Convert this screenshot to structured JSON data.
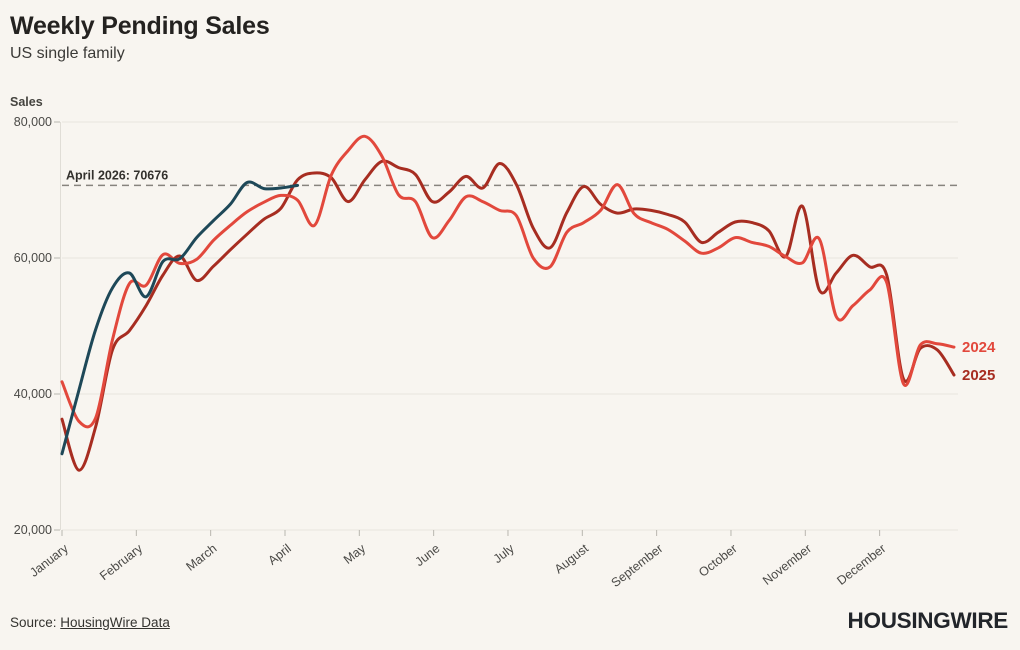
{
  "header": {
    "title": "Weekly Pending Sales",
    "subtitle": "US single family"
  },
  "chart_data": {
    "type": "line",
    "title": "Weekly Pending Sales",
    "subtitle": "US single family",
    "ylabel": "Sales",
    "ylim": [
      20000,
      80000
    ],
    "grid": "horizontal",
    "legend_position": "line-end-labels",
    "y_ticks": [
      {
        "value": 80000,
        "label": "80,000"
      },
      {
        "value": 60000,
        "label": "60,000"
      },
      {
        "value": 40000,
        "label": "40,000"
      },
      {
        "value": 20000,
        "label": "20,000"
      }
    ],
    "x_tick_labels": [
      "January",
      "February",
      "March",
      "April",
      "May",
      "June",
      "July",
      "August",
      "September",
      "October",
      "November",
      "December"
    ],
    "x_unit": "weeks",
    "annotation": {
      "label": "April 2026: 70676",
      "value": 70676
    },
    "colors": {
      "year2024": "#e2483c",
      "year2025": "#a72d21",
      "year2026": "#1e4858",
      "gridline": "#e8e5de",
      "dashed_line": "#87847e",
      "tick": "#b9b6af"
    },
    "series": [
      {
        "name": "2025",
        "color": "#a72d21",
        "end_label": "2025",
        "values": [
          36300,
          28800,
          35200,
          46500,
          49300,
          53000,
          57500,
          60300,
          56700,
          58800,
          61200,
          63500,
          65700,
          67300,
          71500,
          72500,
          71800,
          68300,
          71500,
          74200,
          73300,
          72300,
          68300,
          69700,
          72000,
          70300,
          73900,
          70800,
          64400,
          61500,
          66700,
          70500,
          67900,
          66600,
          67200,
          67000,
          66400,
          65300,
          62300,
          63800,
          65300,
          65200,
          64000,
          60200,
          67600,
          55300,
          57800,
          60400,
          58700,
          57500,
          42200,
          46700,
          46500,
          42800
        ]
      },
      {
        "name": "2024",
        "color": "#e2483c",
        "end_label": "2024",
        "values": [
          41800,
          36000,
          36500,
          48000,
          56200,
          56000,
          60500,
          59200,
          59800,
          62600,
          64800,
          66800,
          68200,
          69200,
          68500,
          64800,
          72200,
          75800,
          77900,
          75000,
          69300,
          68300,
          63000,
          65500,
          69000,
          68300,
          67000,
          66200,
          60000,
          58700,
          63800,
          65200,
          67000,
          70800,
          66500,
          65200,
          64200,
          62500,
          60700,
          61500,
          63000,
          62300,
          61700,
          60200,
          59300,
          62800,
          51400,
          53000,
          55300,
          56400,
          41500,
          47200,
          47400,
          46900
        ]
      },
      {
        "name": "2026",
        "color": "#1e4858",
        "end_label": null,
        "values": [
          31200,
          40500,
          49500,
          55600,
          57800,
          54300,
          59500,
          59900,
          63000,
          65500,
          67900,
          71100,
          70200,
          70300,
          70676
        ]
      }
    ]
  },
  "footer": {
    "source_prefix": "Source: ",
    "source_link_text": "HousingWire Data",
    "logo_text": "HOUSINGWIRE"
  }
}
